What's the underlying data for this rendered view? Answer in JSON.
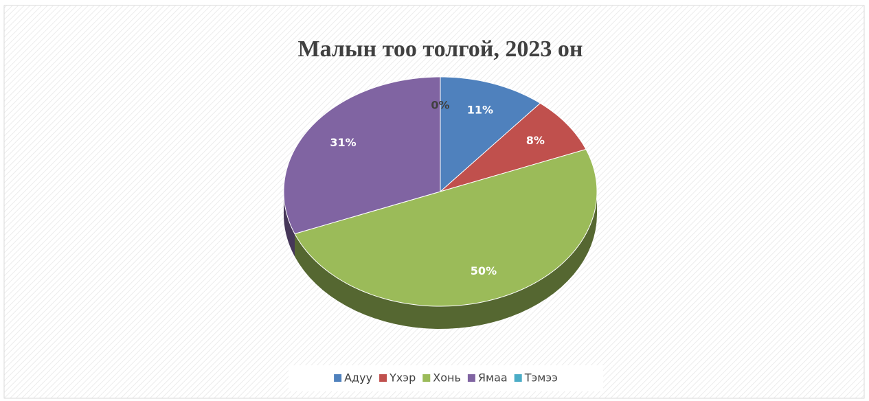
{
  "chart_data": {
    "type": "pie",
    "title": "Малын тоо толгой, 2023 он",
    "categories": [
      "Адуу",
      "Үхэр",
      "Хонь",
      "Ямаа",
      "Тэмээ"
    ],
    "values": [
      11,
      8,
      50,
      31,
      0
    ],
    "value_labels": [
      "11%",
      "8%",
      "50%",
      "31%",
      "0%"
    ],
    "colors": [
      "#4f81bd",
      "#c0504d",
      "#9bbb59",
      "#8064a2",
      "#4bacc6"
    ],
    "legend": "bottom"
  }
}
